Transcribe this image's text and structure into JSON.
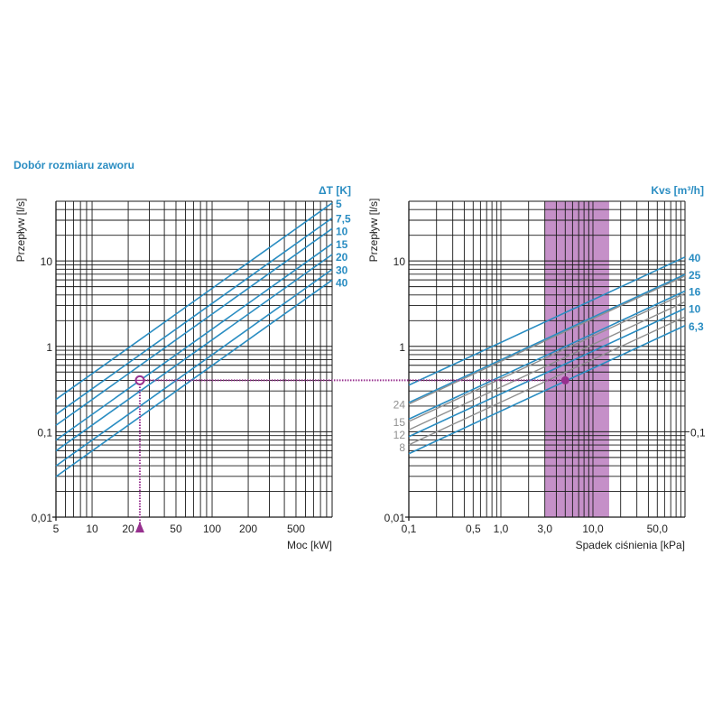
{
  "title": "Dobór rozmiaru zaworu",
  "colors": {
    "blue": "#2a8dc2",
    "gray": "#8f8f8f",
    "purple": "#97308f",
    "band": "#c590c8",
    "grid": "#1a1a1a"
  },
  "chart_data": [
    {
      "type": "line",
      "title": "",
      "xlabel": "Moc [kW]",
      "ylabel": "Przepływ [l/s]",
      "xscale": "log",
      "yscale": "log",
      "xlim": [
        5,
        1000
      ],
      "ylim": [
        0.01,
        50
      ],
      "grid": true,
      "x_ticks": [
        {
          "v": 5,
          "label": "5"
        },
        {
          "v": 10,
          "label": "10"
        },
        {
          "v": 20,
          "label": "20"
        },
        {
          "v": 50,
          "label": "50"
        },
        {
          "v": 100,
          "label": "100"
        },
        {
          "v": 200,
          "label": "200"
        },
        {
          "v": 500,
          "label": "500"
        }
      ],
      "y_ticks": [
        {
          "v": 0.01,
          "label": "0,01"
        },
        {
          "v": 0.1,
          "label": "0,1"
        },
        {
          "v": 1,
          "label": "1"
        },
        {
          "v": 10,
          "label": "10"
        }
      ],
      "legend_title": "ΔT [K]",
      "legend_placement": "right",
      "series": [
        {
          "name": "5",
          "color": "blue",
          "x": [
            5,
            1000
          ],
          "y": [
            0.239,
            47.7
          ]
        },
        {
          "name": "7,5",
          "color": "blue",
          "x": [
            5,
            1000
          ],
          "y": [
            0.159,
            31.8
          ]
        },
        {
          "name": "10",
          "color": "blue",
          "x": [
            5,
            1000
          ],
          "y": [
            0.119,
            23.9
          ]
        },
        {
          "name": "15",
          "color": "blue",
          "x": [
            5,
            1000
          ],
          "y": [
            0.0796,
            15.9
          ]
        },
        {
          "name": "20",
          "color": "blue",
          "x": [
            5,
            1000
          ],
          "y": [
            0.0597,
            11.9
          ]
        },
        {
          "name": "30",
          "color": "blue",
          "x": [
            5,
            1000
          ],
          "y": [
            0.0398,
            7.96
          ]
        },
        {
          "name": "40",
          "color": "blue",
          "x": [
            5,
            1000
          ],
          "y": [
            0.0298,
            5.97
          ]
        }
      ],
      "annotation": {
        "x": 25,
        "y": 0.4
      }
    },
    {
      "type": "line",
      "title": "",
      "xlabel": "Spadek ciśnienia [kPa]",
      "ylabel": "Przepływ [l/s]",
      "xscale": "log",
      "yscale": "log",
      "xlim": [
        0.1,
        100
      ],
      "ylim": [
        0.01,
        50
      ],
      "grid": true,
      "x_ticks": [
        {
          "v": 0.1,
          "label": "0,1"
        },
        {
          "v": 0.5,
          "label": "0,5"
        },
        {
          "v": 1,
          "label": "1,0"
        },
        {
          "v": 3,
          "label": "3,0"
        },
        {
          "v": 10,
          "label": "10,0"
        },
        {
          "v": 50,
          "label": "50,0"
        }
      ],
      "y_ticks": [
        {
          "v": 0.01,
          "label": "0,01"
        },
        {
          "v": 1,
          "label": "1"
        },
        {
          "v": 10,
          "label": "10"
        }
      ],
      "y_ticks_right": [
        {
          "v": 0.1,
          "label": "0,1"
        }
      ],
      "legend_title": "Kvs [m³/h]",
      "legend_placement": "right",
      "band": {
        "x": [
          3,
          15
        ]
      },
      "series": [
        {
          "name": "40",
          "color": "blue",
          "label_side": "right",
          "x": [
            0.1,
            100
          ],
          "y": [
            0.351,
            11.11
          ]
        },
        {
          "name": "25",
          "color": "blue",
          "label_side": "right",
          "x": [
            0.1,
            100
          ],
          "y": [
            0.2196,
            6.94
          ]
        },
        {
          "name": "24",
          "color": "gray",
          "label_side": "left",
          "x": [
            0.1,
            100
          ],
          "y": [
            0.2108,
            6.67
          ]
        },
        {
          "name": "16",
          "color": "blue",
          "label_side": "right",
          "x": [
            0.1,
            100
          ],
          "y": [
            0.1405,
            4.44
          ]
        },
        {
          "name": "15",
          "color": "gray",
          "label_side": "left",
          "x": [
            0.1,
            100
          ],
          "y": [
            0.1318,
            4.17
          ]
        },
        {
          "name": "12",
          "color": "gray",
          "label_side": "left",
          "x": [
            0.1,
            100
          ],
          "y": [
            0.1054,
            3.33
          ]
        },
        {
          "name": "10",
          "color": "blue",
          "label_side": "right",
          "x": [
            0.1,
            100
          ],
          "y": [
            0.0878,
            2.78
          ]
        },
        {
          "name": "8",
          "color": "gray",
          "label_side": "left",
          "x": [
            0.1,
            100
          ],
          "y": [
            0.0703,
            2.22
          ]
        },
        {
          "name": "6,3",
          "color": "blue",
          "label_side": "right",
          "x": [
            0.1,
            100
          ],
          "y": [
            0.0553,
            1.75
          ]
        }
      ],
      "annotation": {
        "x": 5,
        "y": 0.4
      }
    }
  ]
}
